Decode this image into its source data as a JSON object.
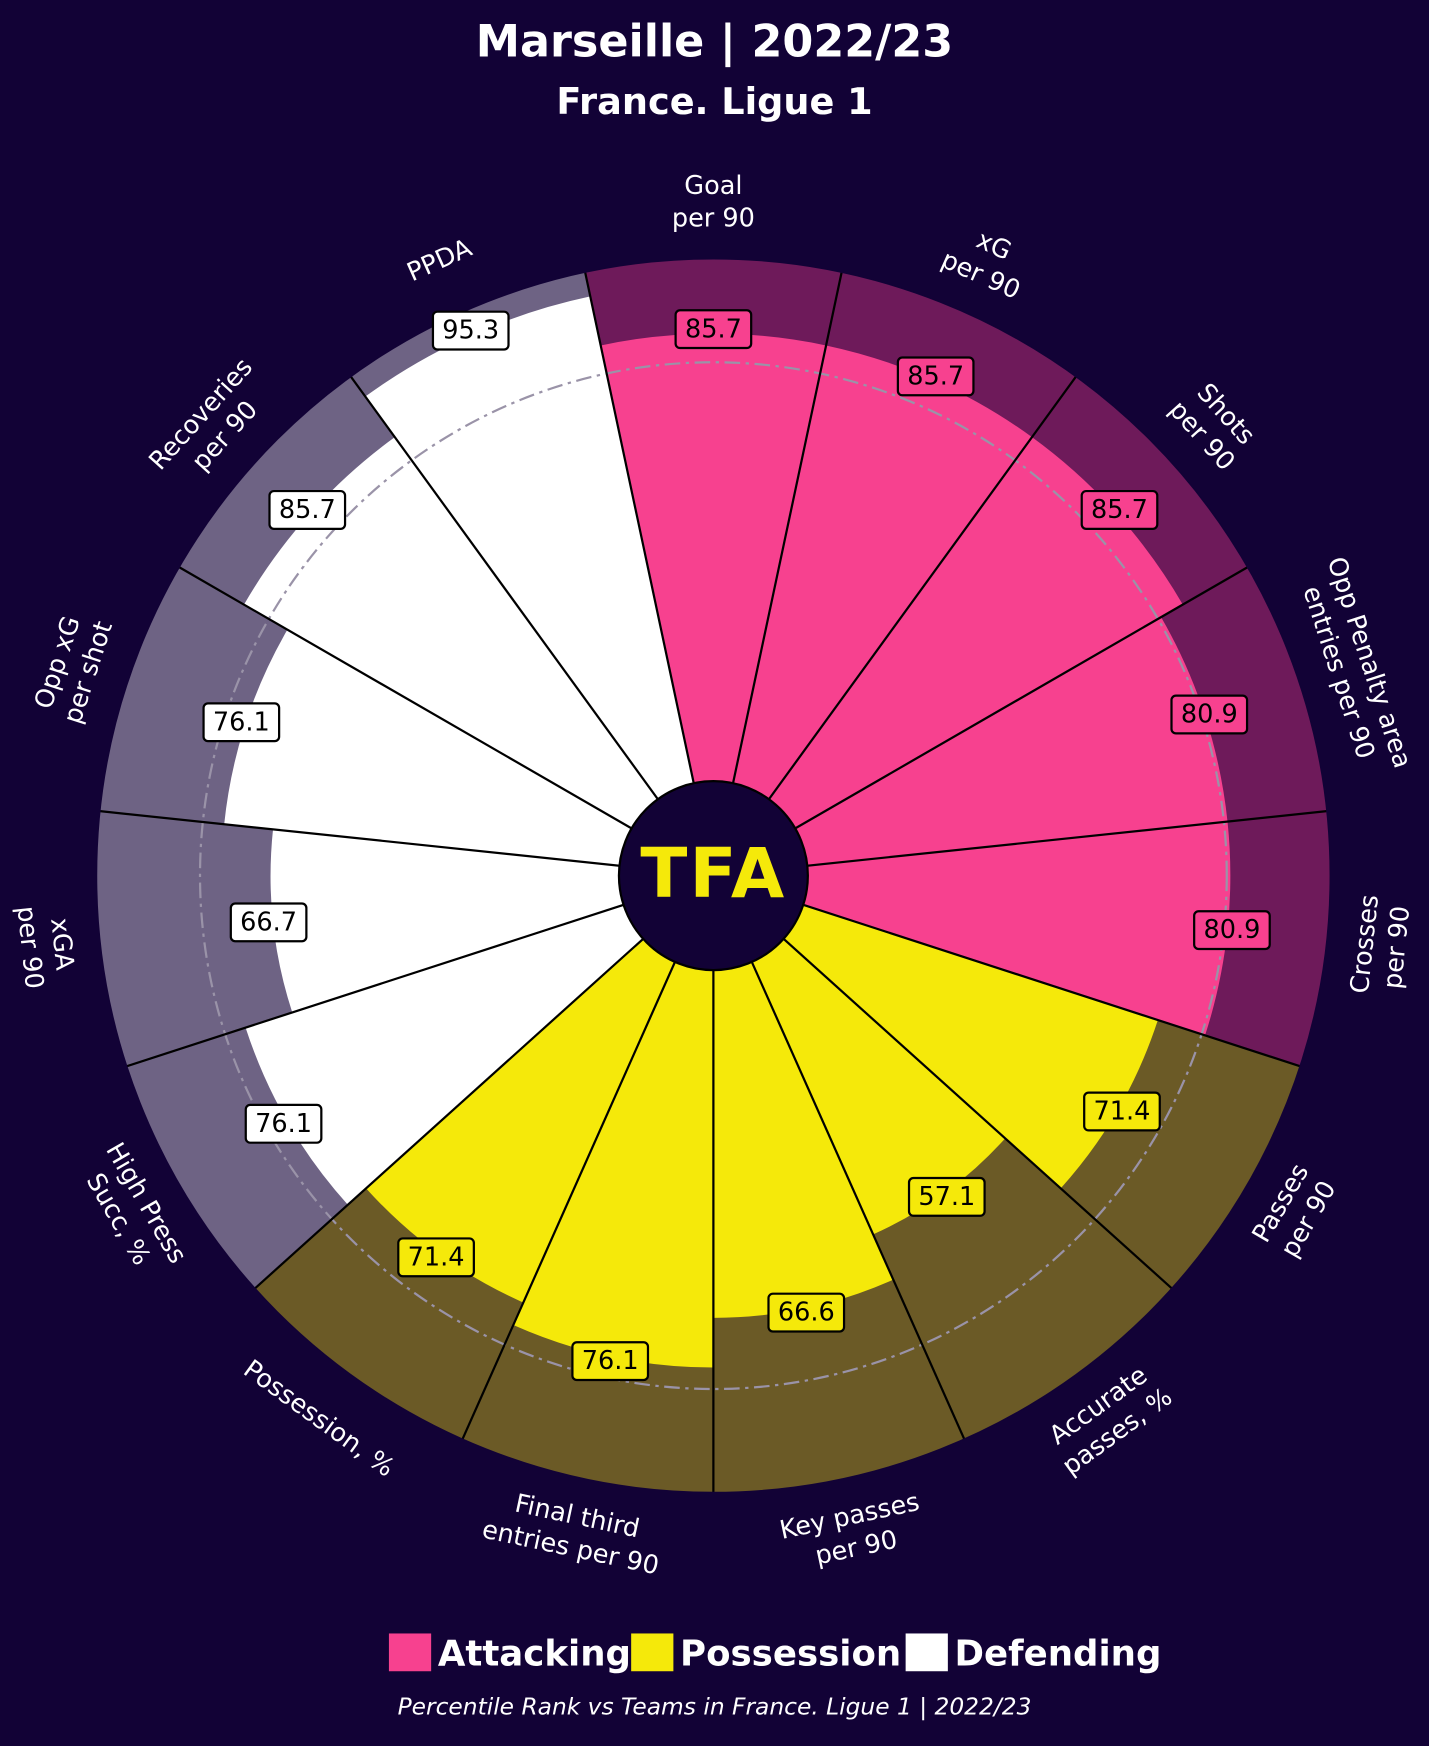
{
  "chart_data": {
    "type": "pizza",
    "title": "Marseille | 2022/23",
    "subtitle": "France. Ligue 1",
    "logo": "TFA",
    "footnote": "Percentile Rank vs Teams in France. Ligue 1 | 2022/23",
    "ylim": [
      0,
      100
    ],
    "categories": [
      [
        "Goal",
        "per 90"
      ],
      [
        "xG",
        "per 90"
      ],
      [
        "Shots",
        "per 90"
      ],
      [
        "Opp Penalty area",
        "entries per 90"
      ],
      [
        "Crosses",
        "per 90"
      ],
      [
        "Passes",
        "per 90"
      ],
      [
        "Accurate",
        "passes, %"
      ],
      [
        "Key passes",
        "per 90"
      ],
      [
        "Final third",
        "entries per 90"
      ],
      [
        "Possession, %"
      ],
      [
        "High Press",
        "Succ, %"
      ],
      [
        "xGA",
        "per 90"
      ],
      [
        "Opp xG",
        "per shot"
      ],
      [
        "Recoveries",
        "per 90"
      ],
      [
        "PPDA"
      ]
    ],
    "series": [
      {
        "name": "Attacking",
        "color": "#f7418f",
        "background": "#6e1a5a",
        "values": [
          85.7,
          85.7,
          85.7,
          80.9,
          80.9,
          null,
          null,
          null,
          null,
          null,
          null,
          null,
          null,
          null,
          null
        ]
      },
      {
        "name": "Possession",
        "color": "#f5e90a",
        "background": "#6b5a26",
        "values": [
          null,
          null,
          null,
          null,
          null,
          71.4,
          57.1,
          66.6,
          76.1,
          71.4,
          null,
          null,
          null,
          null,
          null
        ]
      },
      {
        "name": "Defending",
        "color": "#ffffff",
        "background": "#6e6384",
        "values": [
          null,
          null,
          null,
          null,
          null,
          null,
          null,
          null,
          null,
          null,
          76.1,
          66.7,
          76.1,
          85.7,
          95.3
        ]
      }
    ]
  }
}
